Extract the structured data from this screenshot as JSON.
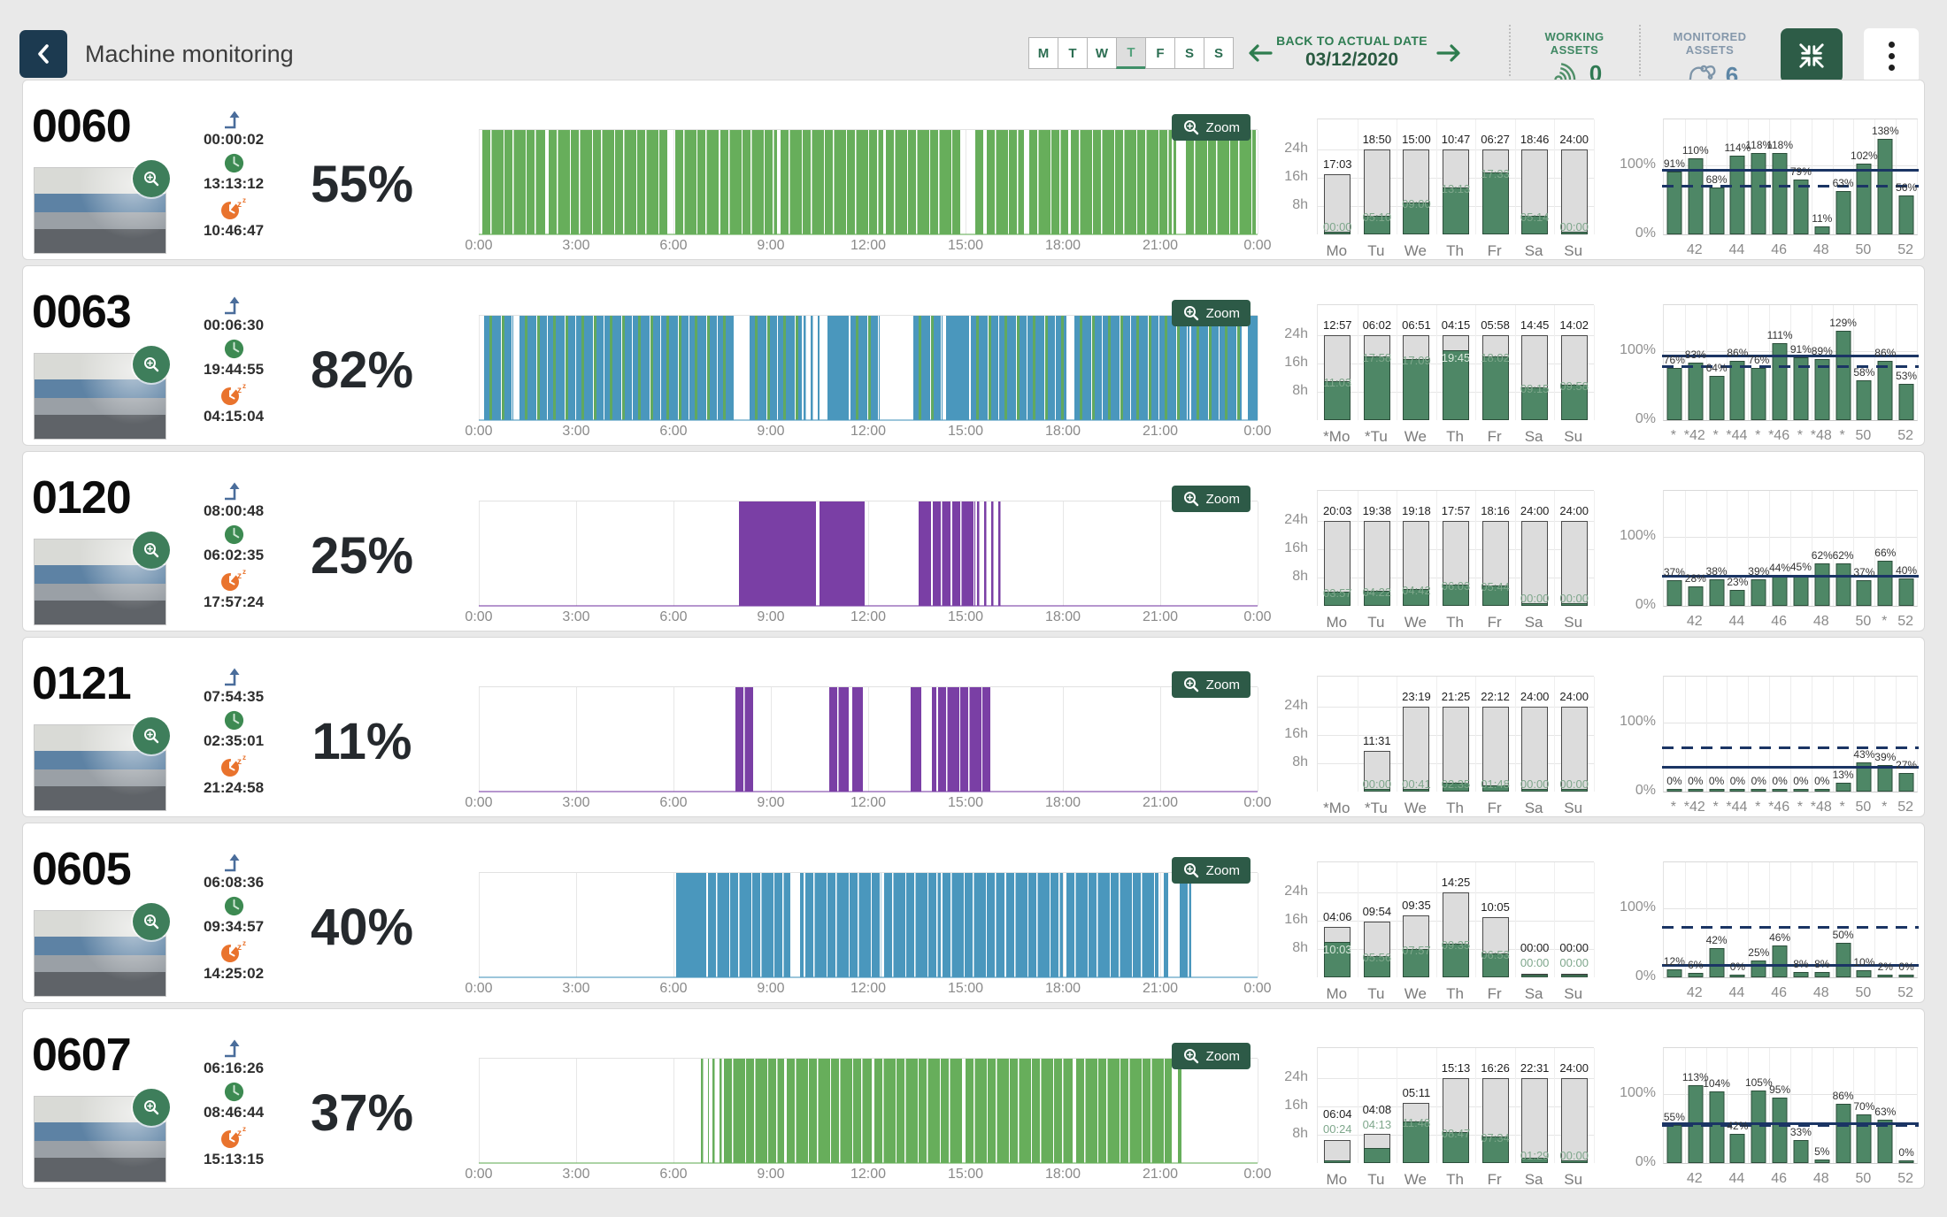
{
  "header": {
    "title": "Machine monitoring",
    "days": [
      "M",
      "T",
      "W",
      "T",
      "F",
      "S",
      "S"
    ],
    "active_day_index": 3,
    "back_to_actual_date": "BACK TO ACTUAL DATE",
    "date": "03/12/2020",
    "working_assets": {
      "label": "WORKING ASSETS",
      "count": "0"
    },
    "monitored_assets": {
      "label": "MONITORED ASSETS",
      "count": "6"
    }
  },
  "zoom_label": "Zoom",
  "timeline_axis": [
    "0:00",
    "3:00",
    "6:00",
    "9:00",
    "12:00",
    "15:00",
    "18:00",
    "21:00",
    "0:00"
  ],
  "daily_axis": [
    "24h",
    "16h",
    "8h"
  ],
  "week_axis": {
    "top": "100%",
    "bottom": "0%"
  },
  "colors": {
    "green": "#67ae5b",
    "blue": "#4a97bd",
    "purple": "#7a3fa5",
    "bar_green": "#4e8766",
    "line_navy": "#1b3564",
    "button_green": "#2d5a47",
    "back_navy": "#1c3a50"
  },
  "machines": [
    {
      "id": "0060",
      "percent": "55%",
      "times": {
        "arrow": "00:00:02",
        "work": "13:13:12",
        "sleep": "10:46:47"
      },
      "timeline": {
        "color": "green",
        "segments": [
          [
            0.1,
            2.05,
            "s"
          ],
          [
            2.15,
            5.8,
            "s"
          ],
          [
            6.05,
            7.4,
            "s"
          ],
          [
            7.45,
            9.2,
            "s"
          ],
          [
            9.3,
            12.45,
            "s"
          ],
          [
            12.55,
            14.85,
            "s"
          ],
          [
            15.3,
            15.55,
            "o"
          ],
          [
            15.65,
            16.8,
            "s"
          ],
          [
            16.95,
            18.15,
            "s"
          ],
          [
            18.25,
            21.35,
            "s"
          ],
          [
            21.4,
            21.5,
            "o"
          ],
          [
            21.8,
            23.95,
            "s"
          ]
        ]
      },
      "daily": {
        "labels": [
          "Mo",
          "Tu",
          "We",
          "Th",
          "Fr",
          "Sa",
          "Su"
        ],
        "idle": [
          "17:03",
          "18:50",
          "15:00",
          "10:47",
          "06:27",
          "18:46",
          "24:00"
        ],
        "work": [
          "00:00",
          "05:10",
          "09:00",
          "13:13",
          "17:33",
          "05:14",
          "00:00"
        ]
      },
      "weeks": {
        "ticks": [
          "",
          "42",
          "",
          "44",
          "",
          "46",
          "",
          "48",
          "",
          "50",
          "",
          "52"
        ],
        "values": [
          91,
          110,
          68,
          114,
          118,
          118,
          79,
          11,
          63,
          102,
          138,
          56
        ],
        "solid": 93,
        "dashed": 70
      }
    },
    {
      "id": "0063",
      "percent": "82%",
      "times": {
        "arrow": "00:06:30",
        "work": "19:44:55",
        "sleep": "04:15:04"
      },
      "timeline": {
        "color": "blue",
        "segments": [
          [
            0.15,
            1.05,
            "m"
          ],
          [
            1.25,
            7.85,
            "m"
          ],
          [
            8.35,
            9.95,
            "m"
          ],
          [
            10.0,
            10.5,
            "p"
          ],
          [
            10.75,
            11.4,
            "o"
          ],
          [
            11.45,
            12.35,
            "m"
          ],
          [
            13.4,
            14.3,
            "m"
          ],
          [
            14.4,
            15.1,
            "o"
          ],
          [
            15.15,
            18.1,
            "m"
          ],
          [
            18.35,
            21.9,
            "m"
          ],
          [
            21.95,
            23.5,
            "m"
          ],
          [
            23.7,
            24,
            "o"
          ]
        ]
      },
      "daily": {
        "labels": [
          "*Mo",
          "*Tu",
          "We",
          "Th",
          "Fr",
          "Sa",
          "Su"
        ],
        "idle": [
          "12:57",
          "06:02",
          "06:51",
          "04:15",
          "05:58",
          "14:45",
          "14:02"
        ],
        "work": [
          "11:03",
          "17:58",
          "17:09",
          "19:45",
          "18:02",
          "09:15",
          "09:58"
        ]
      },
      "weeks": {
        "ticks": [
          "*",
          "*42",
          "*",
          "*44",
          "*",
          "*46",
          "*",
          "*48",
          "*",
          "50",
          "",
          "52"
        ],
        "values": [
          76,
          83,
          64,
          86,
          76,
          111,
          91,
          89,
          129,
          58,
          86,
          53
        ],
        "solid": 93,
        "dashed": 78
      }
    },
    {
      "id": "0120",
      "percent": "25%",
      "times": {
        "arrow": "08:00:48",
        "work": "06:02:35",
        "sleep": "17:57:24"
      },
      "timeline": {
        "color": "purple",
        "segments": [
          [
            8.03,
            10.4,
            "o"
          ],
          [
            10.5,
            11.9,
            "o"
          ],
          [
            13.55,
            13.95,
            "o"
          ],
          [
            14.0,
            14.55,
            "s"
          ],
          [
            14.6,
            15.3,
            "s"
          ],
          [
            15.35,
            16.2,
            "p"
          ]
        ]
      },
      "daily": {
        "labels": [
          "Mo",
          "Tu",
          "We",
          "Th",
          "Fr",
          "Sa",
          "Su"
        ],
        "idle": [
          "20:03",
          "19:38",
          "19:18",
          "17:57",
          "18:16",
          "24:00",
          "24:00"
        ],
        "work": [
          "03:57",
          "04:22",
          "04:42",
          "06:03",
          "05:44",
          "00:00",
          "00:00"
        ]
      },
      "weeks": {
        "ticks": [
          "",
          "42",
          "",
          "44",
          "",
          "46",
          "",
          "48",
          "",
          "50",
          "*",
          "52"
        ],
        "values": [
          37,
          28,
          38,
          23,
          39,
          44,
          45,
          62,
          62,
          37,
          66,
          40
        ],
        "solid": 43,
        "dashed": null
      }
    },
    {
      "id": "0121",
      "percent": "11%",
      "times": {
        "arrow": "07:54:35",
        "work": "02:35:01",
        "sleep": "21:24:58"
      },
      "timeline": {
        "color": "purple",
        "segments": [
          [
            7.9,
            8.45,
            "s"
          ],
          [
            10.8,
            11.4,
            "s"
          ],
          [
            11.5,
            11.85,
            "o"
          ],
          [
            13.3,
            13.65,
            "o"
          ],
          [
            13.95,
            14.1,
            "s"
          ],
          [
            14.15,
            15.8,
            "s"
          ]
        ]
      },
      "daily": {
        "labels": [
          "*Mo",
          "*Tu",
          "We",
          "Th",
          "Fr",
          "Sa",
          "Su"
        ],
        "idle": [
          null,
          "11:31",
          "23:19",
          "21:25",
          "22:12",
          "24:00",
          "24:00"
        ],
        "work": [
          null,
          "00:00",
          "00:41",
          "02:35",
          "01:48",
          "00:00",
          "00:00"
        ]
      },
      "weeks": {
        "ticks": [
          "*",
          "*42",
          "*",
          "*44",
          "*",
          "*46",
          "*",
          "*48",
          "*",
          "50",
          "*",
          "52"
        ],
        "values": [
          0,
          0,
          0,
          0,
          0,
          0,
          0,
          0,
          13,
          43,
          39,
          27
        ],
        "solid": 35,
        "dashed": 63
      }
    },
    {
      "id": "0605",
      "percent": "40%",
      "times": {
        "arrow": "06:08:36",
        "work": "09:34:57",
        "sleep": "14:25:02"
      },
      "timeline": {
        "color": "blue",
        "segments": [
          [
            6.08,
            7.0,
            "o"
          ],
          [
            7.05,
            9.6,
            "s"
          ],
          [
            9.9,
            10.0,
            "o"
          ],
          [
            10.05,
            12.4,
            "s"
          ],
          [
            12.5,
            14.25,
            "s"
          ],
          [
            14.3,
            16.2,
            "s"
          ],
          [
            16.25,
            18.0,
            "s"
          ],
          [
            18.1,
            20.95,
            "s"
          ],
          [
            21.1,
            21.25,
            "o"
          ],
          [
            21.6,
            21.95,
            "s"
          ]
        ]
      },
      "daily": {
        "labels": [
          "Mo",
          "Tu",
          "We",
          "Th",
          "Fr",
          "Sa",
          "Su"
        ],
        "idle": [
          "04:06",
          "09:54",
          "09:35",
          "14:25",
          "10:05",
          "00:00",
          "00:00"
        ],
        "work": [
          "10:03",
          "05:56",
          "07:57",
          "09:35",
          "06:53",
          "00:00",
          "00:00"
        ]
      },
      "weeks": {
        "ticks": [
          "",
          "42",
          "",
          "44",
          "",
          "46",
          "",
          "48",
          "",
          "50",
          "",
          "52"
        ],
        "values": [
          12,
          6,
          42,
          0,
          25,
          46,
          8,
          8,
          50,
          10,
          2,
          0
        ],
        "solid": 17,
        "dashed": 72
      }
    },
    {
      "id": "0607",
      "percent": "37%",
      "times": {
        "arrow": "06:16:26",
        "work": "08:46:44",
        "sleep": "15:13:15"
      },
      "timeline": {
        "color": "green",
        "segments": [
          [
            6.85,
            7.1,
            "p"
          ],
          [
            7.2,
            7.5,
            "p"
          ],
          [
            7.55,
            9.4,
            "s"
          ],
          [
            9.5,
            12.1,
            "s"
          ],
          [
            12.2,
            14.9,
            "s"
          ],
          [
            15.0,
            18.3,
            "s"
          ],
          [
            18.4,
            21.35,
            "s"
          ],
          [
            21.55,
            21.65,
            "o"
          ]
        ]
      },
      "daily": {
        "labels": [
          "Mo",
          "Tu",
          "We",
          "Th",
          "Fr",
          "Sa",
          "Su"
        ],
        "idle": [
          "06:04",
          "04:08",
          "05:11",
          "15:13",
          "16:26",
          "22:31",
          "24:00"
        ],
        "work": [
          "00:24",
          "04:13",
          "11:48",
          "08:47",
          "07:34",
          "01:29",
          "00:00"
        ]
      },
      "weeks": {
        "ticks": [
          "",
          "42",
          "",
          "44",
          "",
          "46",
          "",
          "48",
          "",
          "50",
          "",
          "52"
        ],
        "values": [
          55,
          113,
          104,
          42,
          105,
          95,
          33,
          5,
          86,
          70,
          63,
          0
        ],
        "solid": 57,
        "dashed": 55
      }
    }
  ]
}
